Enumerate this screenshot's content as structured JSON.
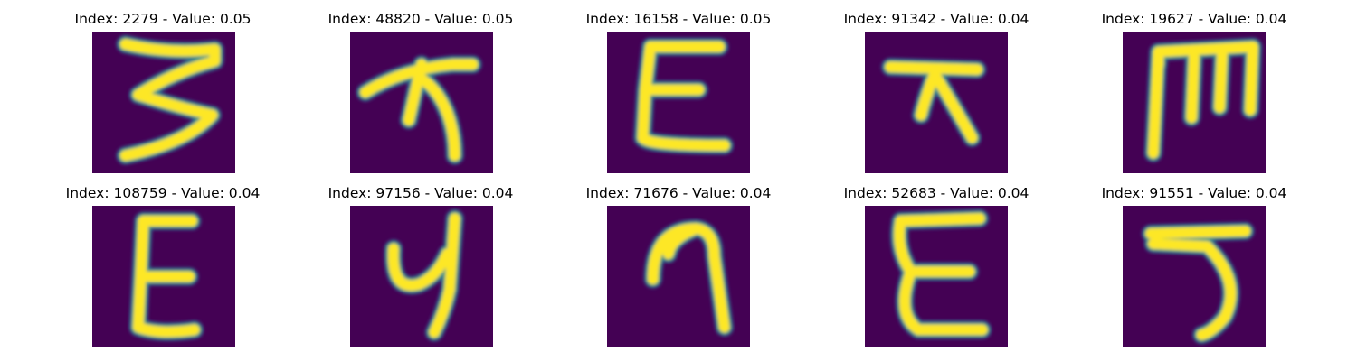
{
  "colors": {
    "background": "#440154",
    "stroke_outer": "#21918c",
    "stroke_inner": "#fde725",
    "edge": "#3b528b"
  },
  "panels": [
    {
      "index": "2279",
      "value": "0.05",
      "title": "Index: 2279 - Value: 0.05",
      "glyph": "three"
    },
    {
      "index": "48820",
      "value": "0.05",
      "title": "Index: 48820 - Value: 0.05",
      "glyph": "ka-sweep"
    },
    {
      "index": "16158",
      "value": "0.05",
      "title": "Index: 16158 - Value: 0.05",
      "glyph": "e-bold"
    },
    {
      "index": "91342",
      "value": "0.04",
      "title": "Index: 91342 - Value: 0.04",
      "glyph": "ka"
    },
    {
      "index": "19627",
      "value": "0.04",
      "title": "Index: 19627 - Value: 0.04",
      "glyph": "m-shape"
    },
    {
      "index": "108759",
      "value": "0.04",
      "title": "Index: 108759 - Value: 0.04",
      "glyph": "e-thin"
    },
    {
      "index": "97156",
      "value": "0.04",
      "title": "Index: 97156 - Value: 0.04",
      "glyph": "pa"
    },
    {
      "index": "71676",
      "value": "0.04",
      "title": "Index: 71676 - Value: 0.04",
      "glyph": "nine"
    },
    {
      "index": "52683",
      "value": "0.04",
      "title": "Index: 52683 - Value: 0.04",
      "glyph": "e-wide"
    },
    {
      "index": "91551",
      "value": "0.04",
      "title": "Index: 91551 - Value: 0.04",
      "glyph": "five"
    }
  ]
}
